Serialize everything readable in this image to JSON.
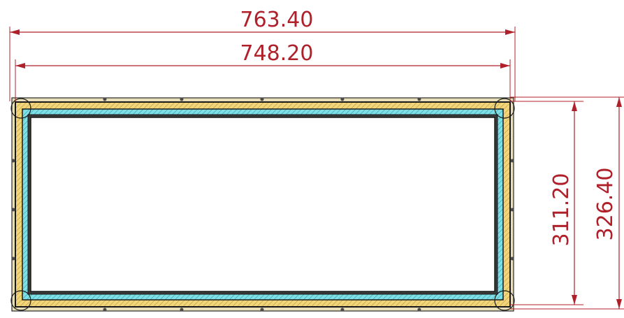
{
  "dimensions": {
    "outer_width": "763.40",
    "inner_width": "748.20",
    "inner_height": "311.20",
    "outer_height": "326.40"
  },
  "colors": {
    "dimension": "#b0202a",
    "frame_outer_fill": "#f2d57a",
    "frame_inner_fill": "#7ee0e6",
    "outline": "#1a1a1a",
    "hatch": "#9a8a50"
  }
}
